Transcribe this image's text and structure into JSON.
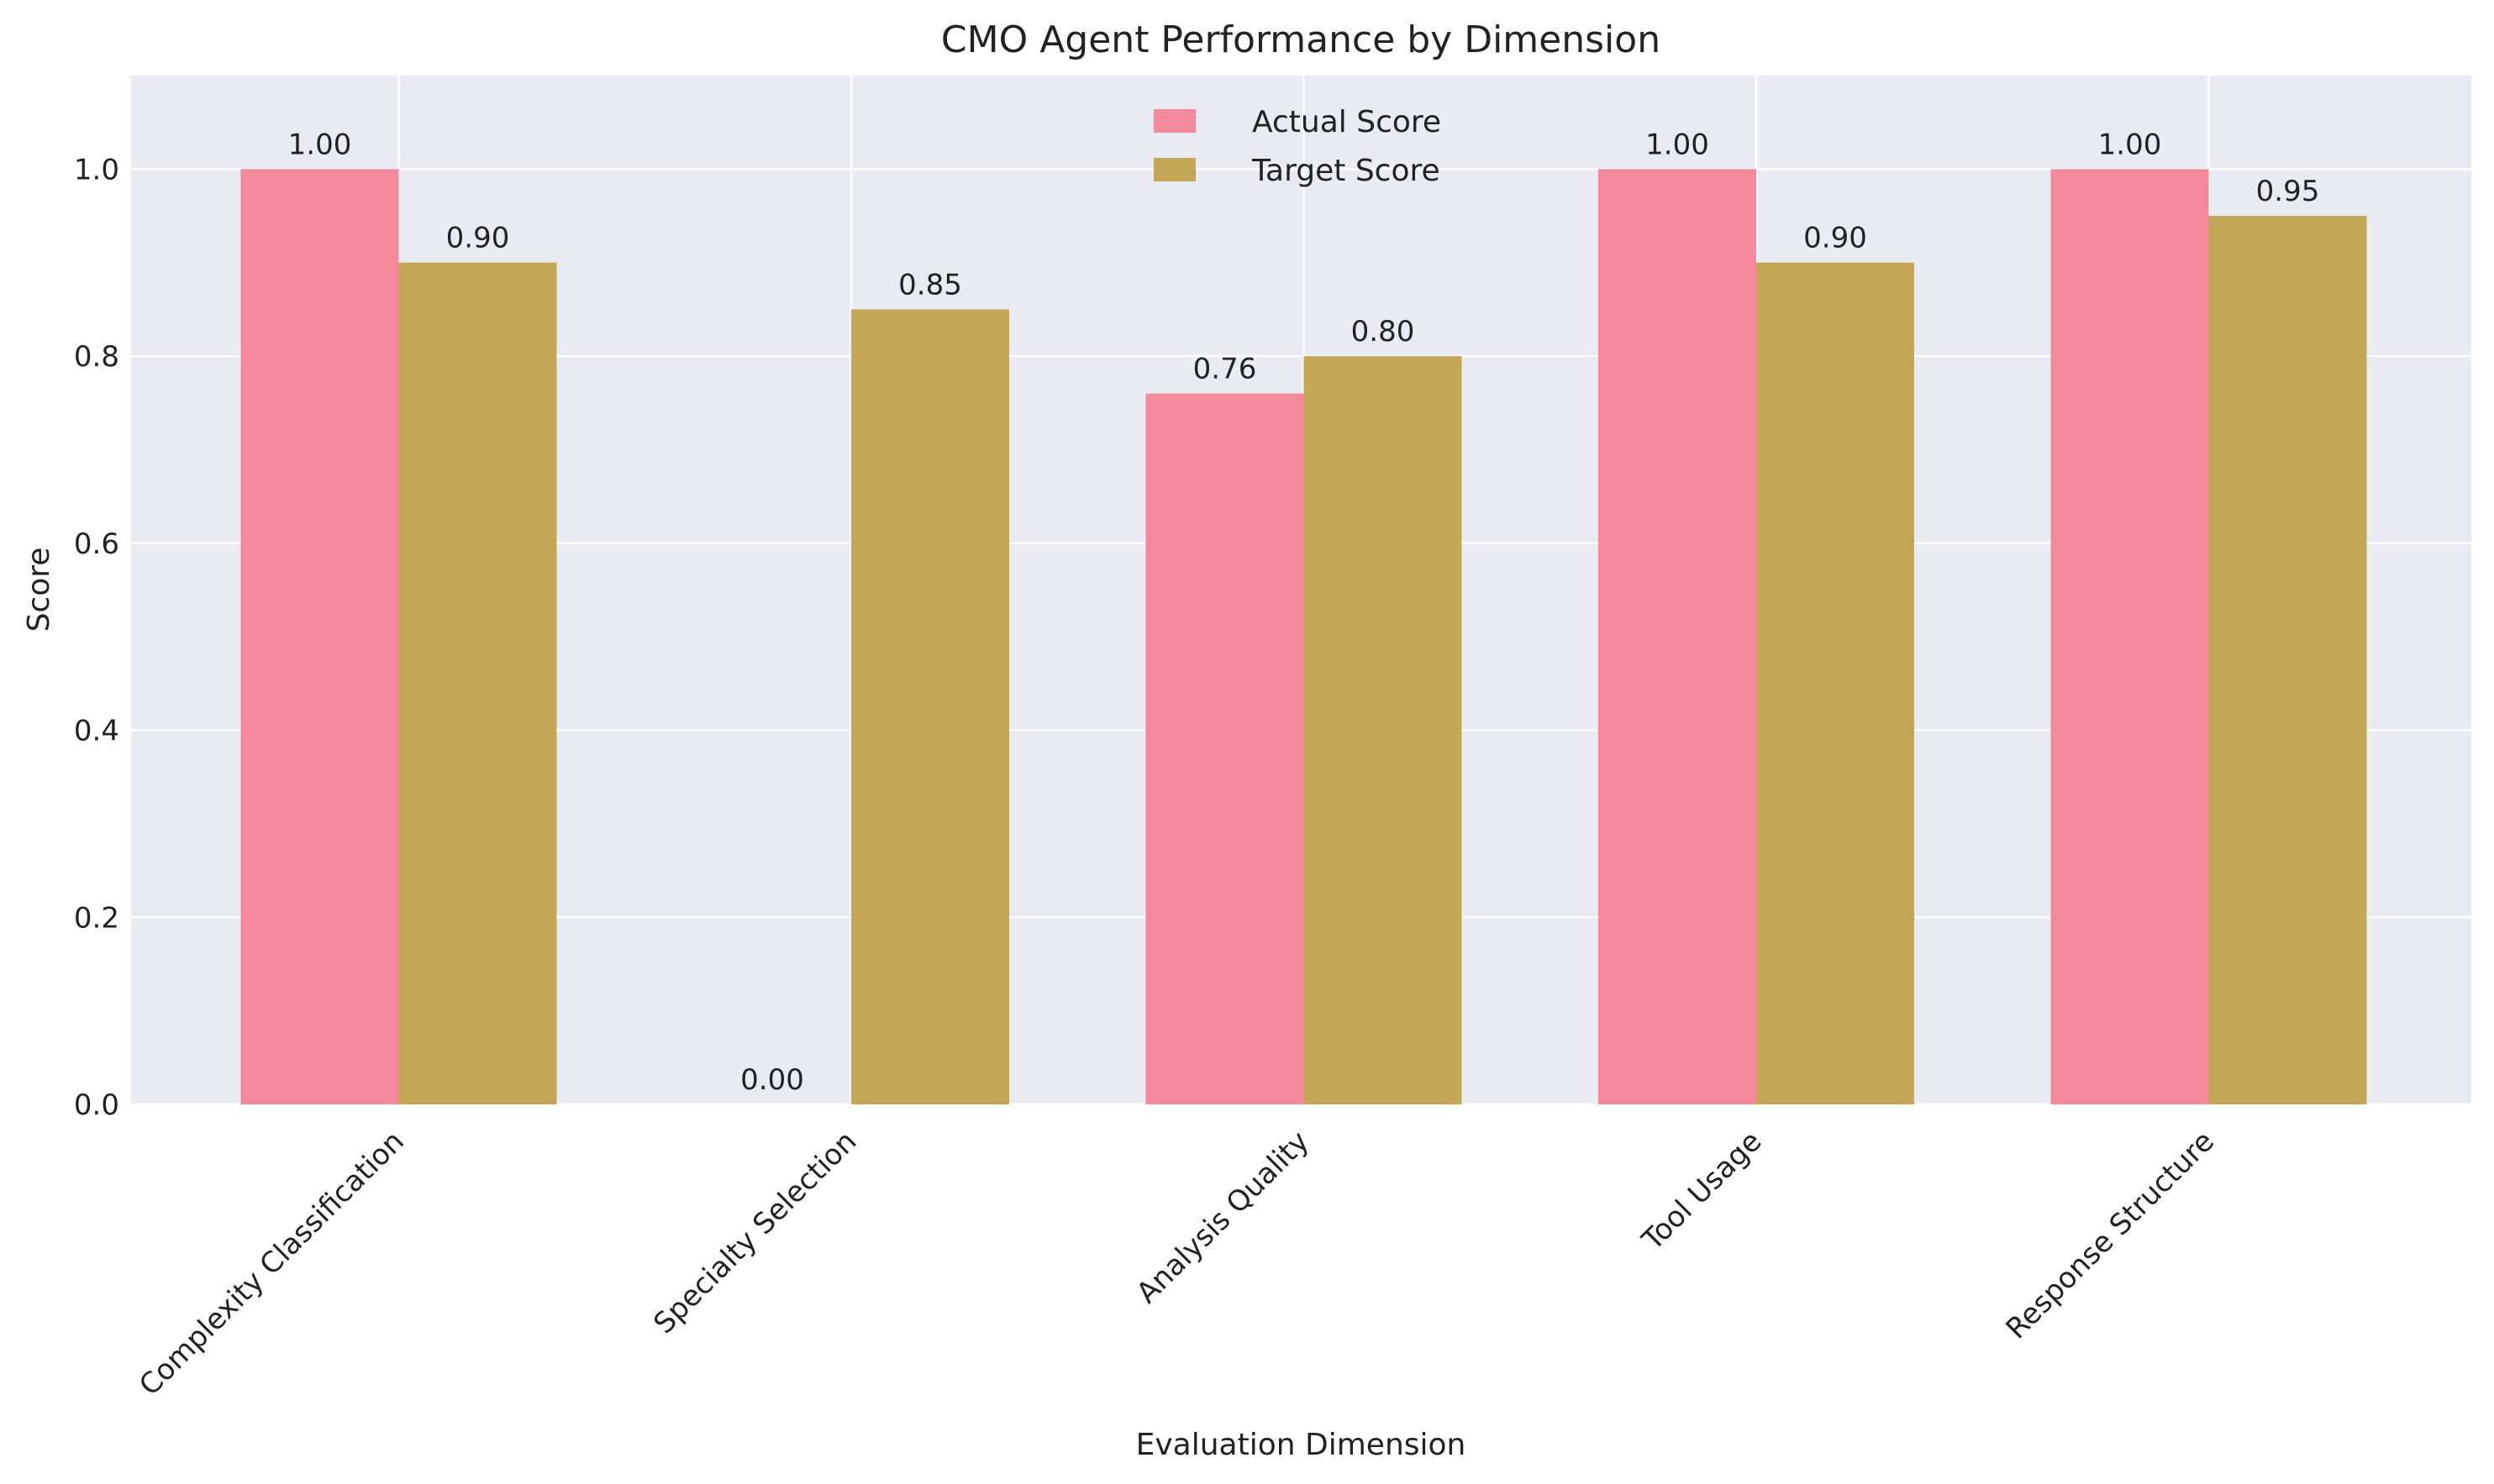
{
  "chart_data": {
    "type": "bar",
    "title": "CMO Agent Performance by Dimension",
    "xlabel": "Evaluation Dimension",
    "ylabel": "Score",
    "ylim": [
      0,
      1.1
    ],
    "yticks": [
      "0.0",
      "0.2",
      "0.4",
      "0.6",
      "0.8",
      "1.0"
    ],
    "grid": true,
    "legend_position": "top-center",
    "categories": [
      "Complexity Classification",
      "Specialty Selection",
      "Analysis Quality",
      "Tool Usage",
      "Response Structure"
    ],
    "series": [
      {
        "name": "Actual Score",
        "color": "#f4899b",
        "values": [
          1.0,
          0.0,
          0.76,
          1.0,
          1.0
        ],
        "labels": [
          "1.00",
          "0.00",
          "0.76",
          "1.00",
          "1.00"
        ]
      },
      {
        "name": "Target Score",
        "color": "#c4a657",
        "values": [
          0.9,
          0.85,
          0.8,
          0.9,
          0.95
        ],
        "labels": [
          "0.90",
          "0.85",
          "0.80",
          "0.90",
          "0.95"
        ]
      }
    ]
  }
}
